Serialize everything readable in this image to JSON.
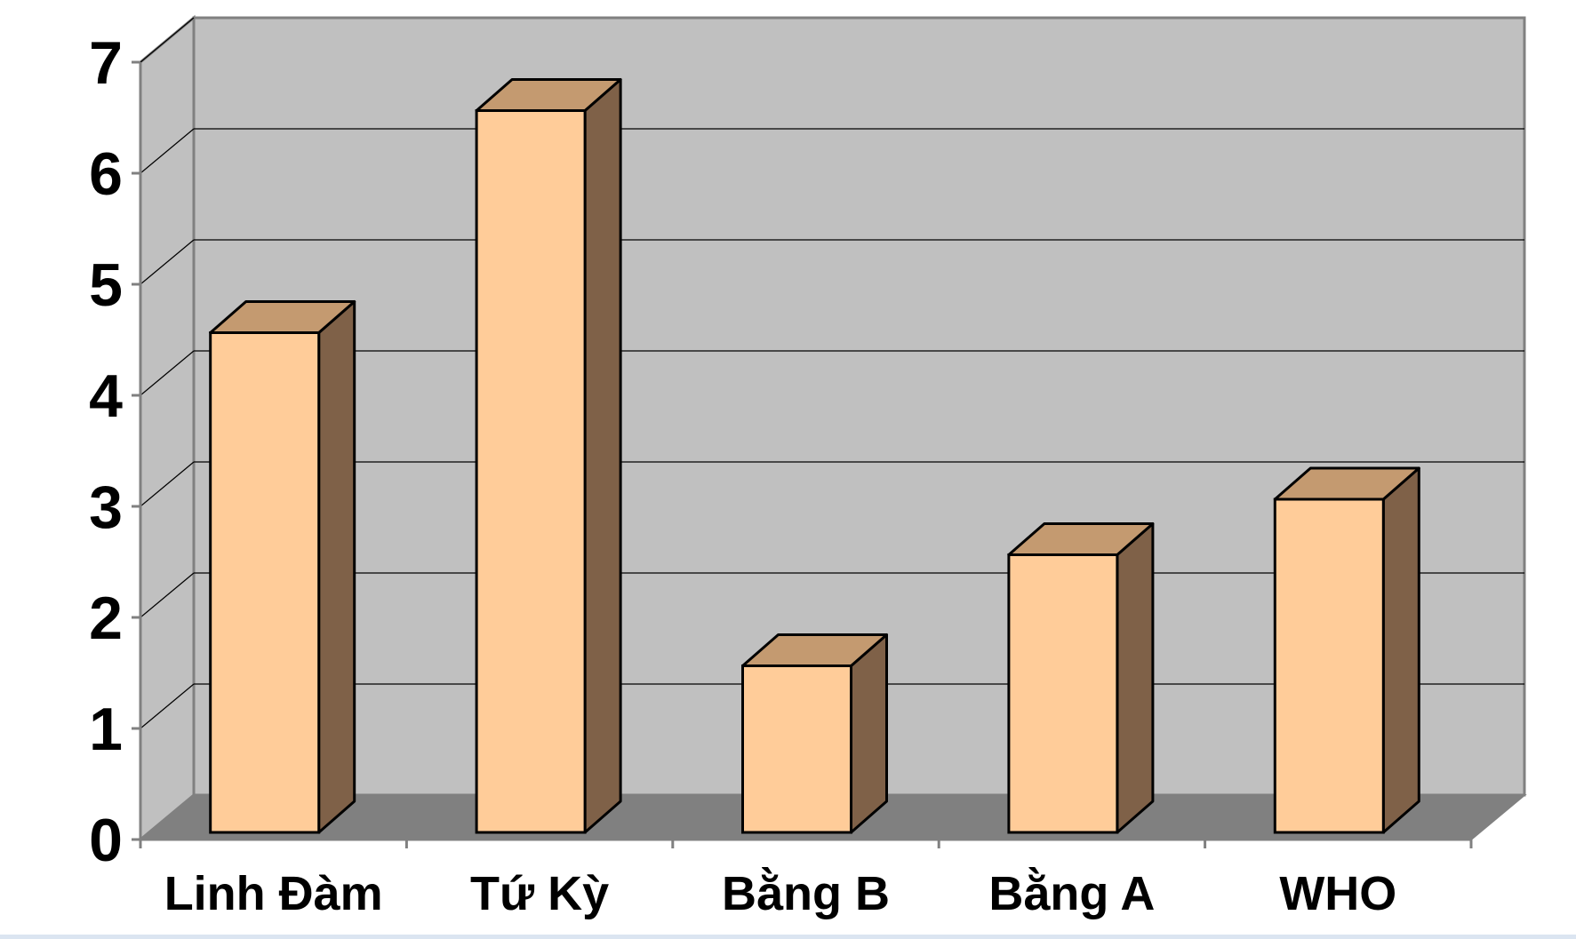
{
  "chart_data": {
    "type": "bar",
    "categories": [
      "Linh Đàm",
      "Tứ Kỳ",
      "Bằng B",
      "Bằng A",
      "WHO"
    ],
    "values": [
      4.5,
      6.5,
      1.5,
      2.5,
      3.0
    ],
    "yticks": [
      "0",
      "1",
      "2",
      "3",
      "4",
      "5",
      "6",
      "7"
    ],
    "ylim": [
      0,
      7
    ],
    "grid": true,
    "three_d": true,
    "title": "",
    "xlabel": "",
    "ylabel": "",
    "colors": {
      "bar_front": "#ffcc99",
      "bar_top": "#c49a70",
      "bar_side": "#7f6148",
      "back_wall": "#c0c0c0",
      "side_wall": "#c0c0c0",
      "floor": "#808080",
      "gridline": "#000000"
    }
  }
}
